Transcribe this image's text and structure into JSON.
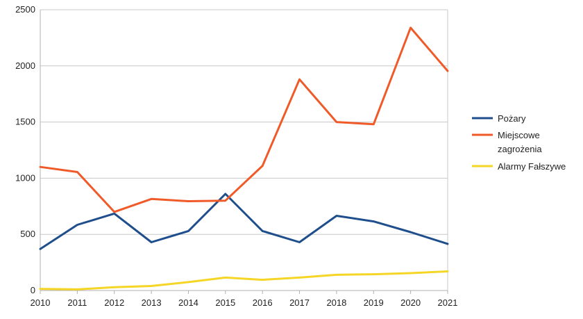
{
  "chart_data": {
    "type": "line",
    "title": "",
    "xlabel": "",
    "ylabel": "",
    "x": [
      "2010",
      "2011",
      "2012",
      "2013",
      "2014",
      "2015",
      "2016",
      "2017",
      "2018",
      "2019",
      "2020",
      "2021"
    ],
    "ylim": [
      0,
      2500
    ],
    "yticks": [
      "0",
      "500",
      "1000",
      "1500",
      "2000",
      "2500"
    ],
    "grid": true,
    "legend_position": "right",
    "series": [
      {
        "name": "Pożary",
        "color": "#1f4e8c",
        "values": [
          370,
          585,
          685,
          430,
          530,
          860,
          530,
          430,
          665,
          615,
          520,
          415
        ]
      },
      {
        "name": "Miejscowe zagrożenia",
        "legend_lines": [
          "Miejscowe",
          "zagrożenia"
        ],
        "color": "#f05a28",
        "values": [
          1100,
          1055,
          700,
          815,
          795,
          800,
          1110,
          1880,
          1500,
          1480,
          2340,
          1955
        ]
      },
      {
        "name": "Alarmy Fałszywe",
        "color": "#f5d626",
        "values": [
          15,
          10,
          30,
          40,
          75,
          115,
          95,
          115,
          140,
          145,
          155,
          170
        ]
      }
    ]
  }
}
